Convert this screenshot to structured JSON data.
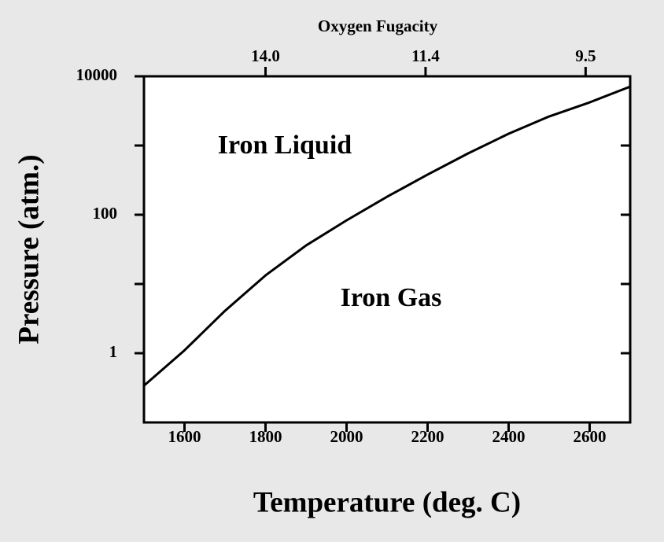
{
  "chart_data": {
    "type": "line",
    "xlabel": "Temperature (deg. C)",
    "ylabel": "Pressure (atm.)",
    "x2label": "Oxygen Fugacity",
    "x": [
      1500,
      1600,
      1700,
      1800,
      1900,
      2000,
      2100,
      2200,
      2300,
      2400,
      2500,
      2600,
      2700
    ],
    "series": [
      {
        "color": "#000000",
        "values": [
          0.34,
          1.1,
          4.1,
          13.3,
          36,
          83,
          182,
          380,
          770,
          1480,
          2630,
          4200,
          7100
        ]
      }
    ],
    "xlim": [
      1500,
      2700
    ],
    "xticks": [
      1600,
      1800,
      2000,
      2200,
      2400,
      2600
    ],
    "x2ticks": [
      {
        "value": 1800,
        "label": "14.0"
      },
      {
        "value": 2195,
        "label": "11.4"
      },
      {
        "value": 2590,
        "label": "9.5"
      }
    ],
    "ylim": [
      0.1,
      10000
    ],
    "yscale": "log",
    "yticks": [
      1,
      100,
      10000
    ],
    "yminorticks": [
      10,
      1000
    ],
    "annotations": [
      "Iron Liquid",
      "Iron Gas"
    ]
  }
}
